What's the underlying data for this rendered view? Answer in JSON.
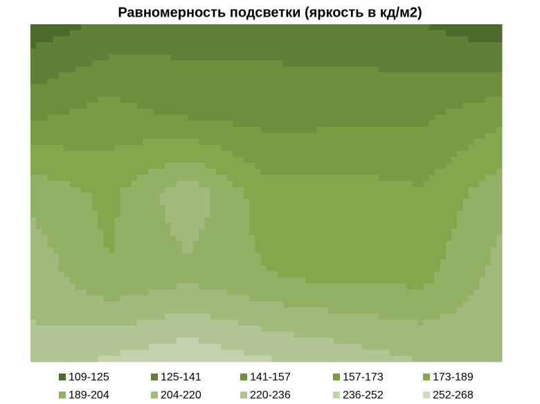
{
  "chart_data": {
    "type": "contour",
    "title": "Равномерность подсветки (яркость в кд/м2)",
    "z": [
      [
        115,
        128,
        135,
        135,
        133,
        125,
        112
      ],
      [
        150,
        162,
        150,
        148,
        150,
        152,
        165
      ],
      [
        200,
        185,
        215,
        180,
        180,
        175,
        200
      ],
      [
        215,
        190,
        200,
        190,
        185,
        185,
        210
      ],
      [
        225,
        240,
        250,
        238,
        230,
        220,
        215
      ]
    ],
    "bands": [
      {
        "label": "109-125",
        "min": 109,
        "max": 125,
        "color": "#4f6b2b"
      },
      {
        "label": "125-141",
        "min": 125,
        "max": 141,
        "color": "#607f37"
      },
      {
        "label": "141-157",
        "min": 141,
        "max": 157,
        "color": "#6e8e3d"
      },
      {
        "label": "157-173",
        "min": 157,
        "max": 173,
        "color": "#799b44"
      },
      {
        "label": "173-189",
        "min": 173,
        "max": 189,
        "color": "#84a64c"
      },
      {
        "label": "189-204",
        "min": 189,
        "max": 204,
        "color": "#93b164"
      },
      {
        "label": "204-220",
        "min": 204,
        "max": 220,
        "color": "#a1ba7c"
      },
      {
        "label": "220-236",
        "min": 220,
        "max": 236,
        "color": "#b0c494"
      },
      {
        "label": "236-252",
        "min": 236,
        "max": 252,
        "color": "#c2d2ad"
      },
      {
        "label": "252-268",
        "min": 252,
        "max": 268,
        "color": "#d0dcc0"
      }
    ]
  }
}
